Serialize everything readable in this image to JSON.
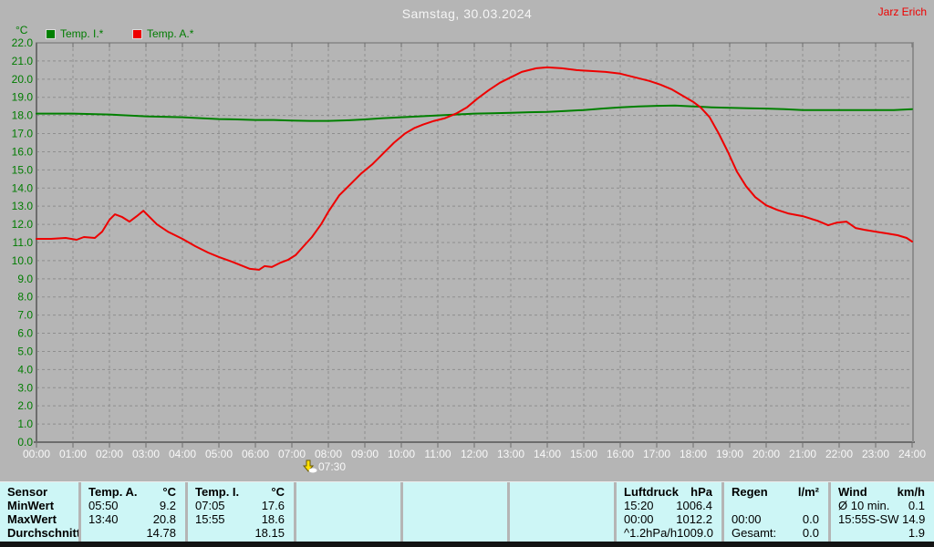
{
  "header": {
    "title": "Samstag, 30.03.2024",
    "watermark": "Jarz Erich"
  },
  "legend": {
    "unit": "°C",
    "series": [
      {
        "label": "Temp. I.*",
        "color": "#008000"
      },
      {
        "label": "Temp. A.*",
        "color": "#ee0000"
      }
    ]
  },
  "chart_data": {
    "type": "line",
    "title": "Samstag, 30.03.2024",
    "ylabel": "°C",
    "ylim": [
      0,
      22
    ],
    "xlim_hours": [
      0,
      24
    ],
    "grid": true,
    "legend_position": "top-left",
    "x_tick_labels": [
      "00:00",
      "01:00",
      "02:00",
      "03:00",
      "04:00",
      "05:00",
      "06:00",
      "07:00",
      "08:00",
      "09:00",
      "10:00",
      "11:00",
      "12:00",
      "13:00",
      "14:00",
      "15:00",
      "16:00",
      "17:00",
      "18:00",
      "19:00",
      "20:00",
      "21:00",
      "22:00",
      "23:00",
      "24:00"
    ],
    "y_tick_labels": [
      "0.0",
      "1.0",
      "2.0",
      "3.0",
      "4.0",
      "5.0",
      "6.0",
      "7.0",
      "8.0",
      "9.0",
      "10.0",
      "11.0",
      "12.0",
      "13.0",
      "14.0",
      "15.0",
      "16.0",
      "17.0",
      "18.0",
      "19.0",
      "20.0",
      "21.0",
      "22.0"
    ],
    "marker": {
      "label": "07:30",
      "x_hours": 7.5
    },
    "series": [
      {
        "name": "Temp. I.*",
        "color": "#008000",
        "x_hours": [
          0,
          1,
          2,
          3,
          4,
          5,
          5.5,
          6,
          6.5,
          7,
          7.5,
          8,
          8.5,
          9,
          9.5,
          10,
          10.5,
          11,
          11.5,
          12,
          12.5,
          13,
          13.5,
          14,
          14.5,
          15,
          15.5,
          16,
          16.5,
          17,
          17.5,
          18,
          18.5,
          19,
          19.5,
          20,
          20.5,
          21,
          21.5,
          22,
          22.5,
          23,
          23.5,
          24
        ],
        "y_temp_c": [
          18.1,
          18.1,
          18.05,
          17.95,
          17.9,
          17.8,
          17.78,
          17.75,
          17.75,
          17.72,
          17.7,
          17.7,
          17.73,
          17.78,
          17.85,
          17.9,
          17.95,
          18.0,
          18.05,
          18.1,
          18.12,
          18.15,
          18.18,
          18.2,
          18.25,
          18.3,
          18.38,
          18.45,
          18.5,
          18.53,
          18.55,
          18.5,
          18.45,
          18.42,
          18.4,
          18.38,
          18.35,
          18.3,
          18.3,
          18.3,
          18.3,
          18.3,
          18.3,
          18.35
        ]
      },
      {
        "name": "Temp. A.*",
        "color": "#ee0000",
        "x_hours": [
          0,
          0.4,
          0.8,
          1.1,
          1.3,
          1.6,
          1.8,
          2.0,
          2.15,
          2.35,
          2.55,
          2.75,
          2.93,
          3.1,
          3.3,
          3.6,
          4.0,
          4.35,
          4.7,
          5.0,
          5.35,
          5.6,
          5.85,
          6.1,
          6.25,
          6.45,
          6.7,
          6.9,
          7.1,
          7.3,
          7.55,
          7.8,
          8.0,
          8.3,
          8.6,
          8.9,
          9.2,
          9.5,
          9.8,
          10.1,
          10.35,
          10.6,
          10.9,
          11.2,
          11.5,
          11.8,
          12.1,
          12.4,
          12.7,
          13.0,
          13.3,
          13.7,
          14.0,
          14.4,
          14.8,
          15.2,
          15.6,
          16.0,
          16.4,
          16.8,
          17.1,
          17.4,
          17.7,
          18.0,
          18.2,
          18.45,
          18.7,
          18.95,
          19.2,
          19.45,
          19.7,
          20.0,
          20.3,
          20.6,
          21.0,
          21.4,
          21.7,
          21.95,
          22.2,
          22.45,
          22.7,
          23.0,
          23.3,
          23.6,
          23.85,
          24.0
        ],
        "y_temp_c": [
          11.2,
          11.2,
          11.25,
          11.15,
          11.3,
          11.25,
          11.6,
          12.25,
          12.55,
          12.4,
          12.15,
          12.45,
          12.75,
          12.4,
          12.0,
          11.6,
          11.2,
          10.8,
          10.45,
          10.2,
          9.95,
          9.75,
          9.55,
          9.5,
          9.7,
          9.65,
          9.9,
          10.05,
          10.3,
          10.75,
          11.3,
          12.0,
          12.7,
          13.6,
          14.2,
          14.8,
          15.3,
          15.9,
          16.5,
          17.0,
          17.3,
          17.5,
          17.7,
          17.85,
          18.1,
          18.45,
          18.95,
          19.4,
          19.8,
          20.1,
          20.4,
          20.6,
          20.65,
          20.6,
          20.5,
          20.45,
          20.4,
          20.3,
          20.1,
          19.9,
          19.7,
          19.45,
          19.1,
          18.75,
          18.45,
          17.9,
          17.0,
          16.0,
          14.9,
          14.1,
          13.5,
          13.05,
          12.8,
          12.6,
          12.45,
          12.2,
          11.95,
          12.1,
          12.15,
          11.8,
          11.7,
          11.6,
          11.5,
          11.4,
          11.25,
          11.05
        ]
      }
    ]
  },
  "stats_table": {
    "row_labels": [
      "Sensor",
      "MinWert",
      "MaxWert",
      "Durchschnitt"
    ],
    "columns": [
      {
        "rows": [
          [
            "Sensor",
            ""
          ],
          [
            "MinWert",
            ""
          ],
          [
            "MaxWert",
            ""
          ],
          [
            "Durchschnitt",
            ""
          ]
        ]
      },
      {
        "rows": [
          [
            "Temp. A.",
            "°C"
          ],
          [
            "05:50",
            "9.2"
          ],
          [
            "13:40",
            "20.8"
          ],
          [
            "",
            "14.78"
          ]
        ]
      },
      {
        "rows": [
          [
            "Temp. I.",
            "°C"
          ],
          [
            "07:05",
            "17.6"
          ],
          [
            "15:55",
            "18.6"
          ],
          [
            "",
            "18.15"
          ]
        ]
      },
      {
        "rows": [
          [
            "",
            ""
          ],
          [
            "",
            ""
          ],
          [
            "",
            ""
          ],
          [
            "",
            ""
          ]
        ]
      },
      {
        "rows": [
          [
            "",
            ""
          ],
          [
            "",
            ""
          ],
          [
            "",
            ""
          ],
          [
            "",
            ""
          ]
        ]
      },
      {
        "rows": [
          [
            "",
            ""
          ],
          [
            "",
            ""
          ],
          [
            "",
            ""
          ],
          [
            "",
            ""
          ]
        ]
      },
      {
        "rows": [
          [
            "Luftdruck",
            "hPa"
          ],
          [
            "15:20",
            "1006.4"
          ],
          [
            "00:00",
            "1012.2"
          ],
          [
            "^1.2hPa/h",
            "1009.0"
          ]
        ]
      },
      {
        "rows": [
          [
            "Regen",
            "l/m²"
          ],
          [
            "",
            ""
          ],
          [
            "00:00",
            "0.0"
          ],
          [
            "Gesamt:",
            "0.0"
          ]
        ]
      },
      {
        "rows": [
          [
            "Wind",
            "km/h"
          ],
          [
            "Ø 10 min.",
            "0.1"
          ],
          [
            "15:55",
            "S-SW 14.9"
          ],
          [
            "",
            "1.9"
          ]
        ]
      }
    ]
  },
  "colors": {
    "background": "#b5b5b5",
    "table_background": "#cdf6f6",
    "grid": "#8e8e8e",
    "axis": "#6d6d6d",
    "y_tick_text": "#007c00",
    "x_tick_text": "#f8f8f8",
    "temp_i": "#008000",
    "temp_a": "#ee0000"
  }
}
